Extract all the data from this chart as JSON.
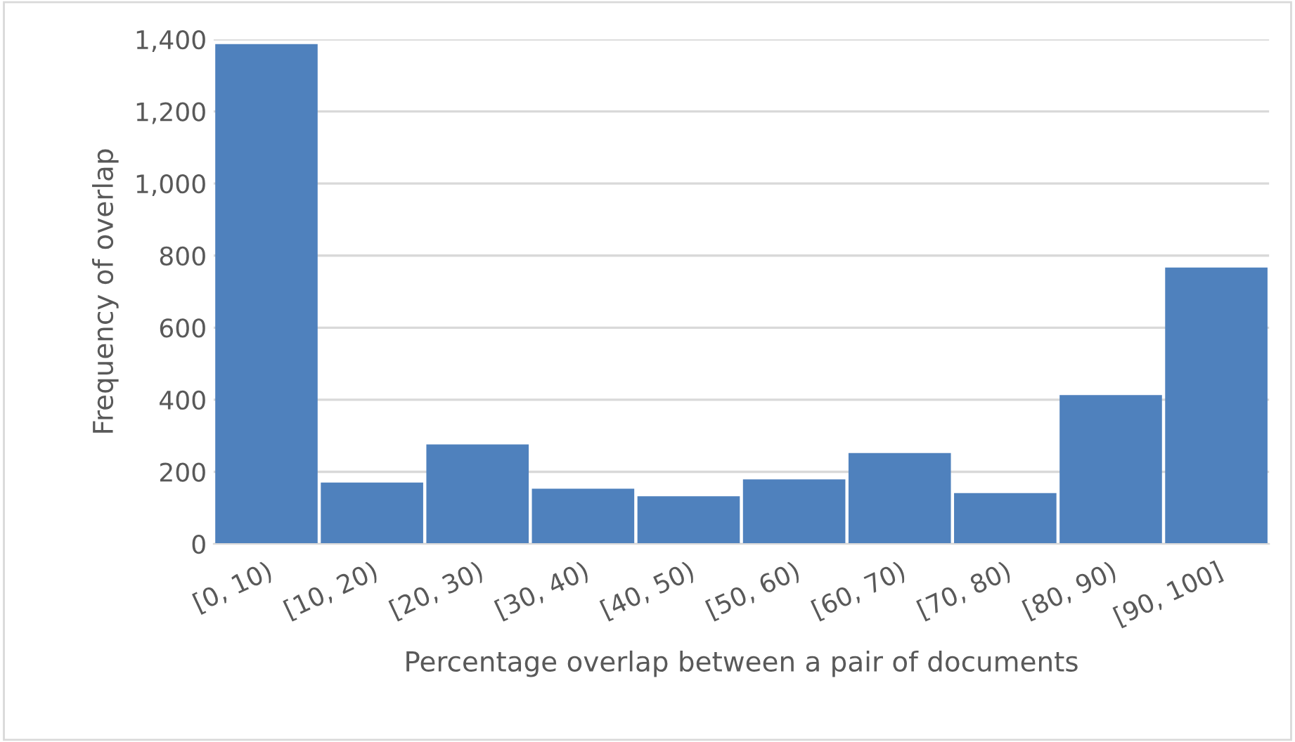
{
  "chart_data": {
    "type": "bar",
    "xlabel": "Percentage overlap between a pair of documents",
    "ylabel": "Frequency of overlap",
    "categories": [
      "[0, 10)",
      "[10, 20)",
      "[20, 30)",
      "[30, 40)",
      "[40, 50)",
      "[50, 60)",
      "[60, 70)",
      "[70, 80)",
      "[80, 90)",
      "[90, 100]"
    ],
    "values": [
      1387,
      170,
      276,
      153,
      132,
      179,
      252,
      141,
      413,
      767
    ],
    "color": "#4f81bd",
    "ylim": [
      0,
      1400
    ],
    "yticks": [
      0,
      {
        "value": 200,
        "label": "200"
      },
      {
        "value": 400,
        "label": "400"
      },
      {
        "value": 600,
        "label": "600"
      },
      {
        "value": 800,
        "label": "800"
      },
      {
        "value": 1000,
        "label": "1,000"
      },
      {
        "value": 1200,
        "label": "1,200"
      },
      {
        "value": 1400,
        "label": "1,400"
      }
    ],
    "grid": "y"
  }
}
